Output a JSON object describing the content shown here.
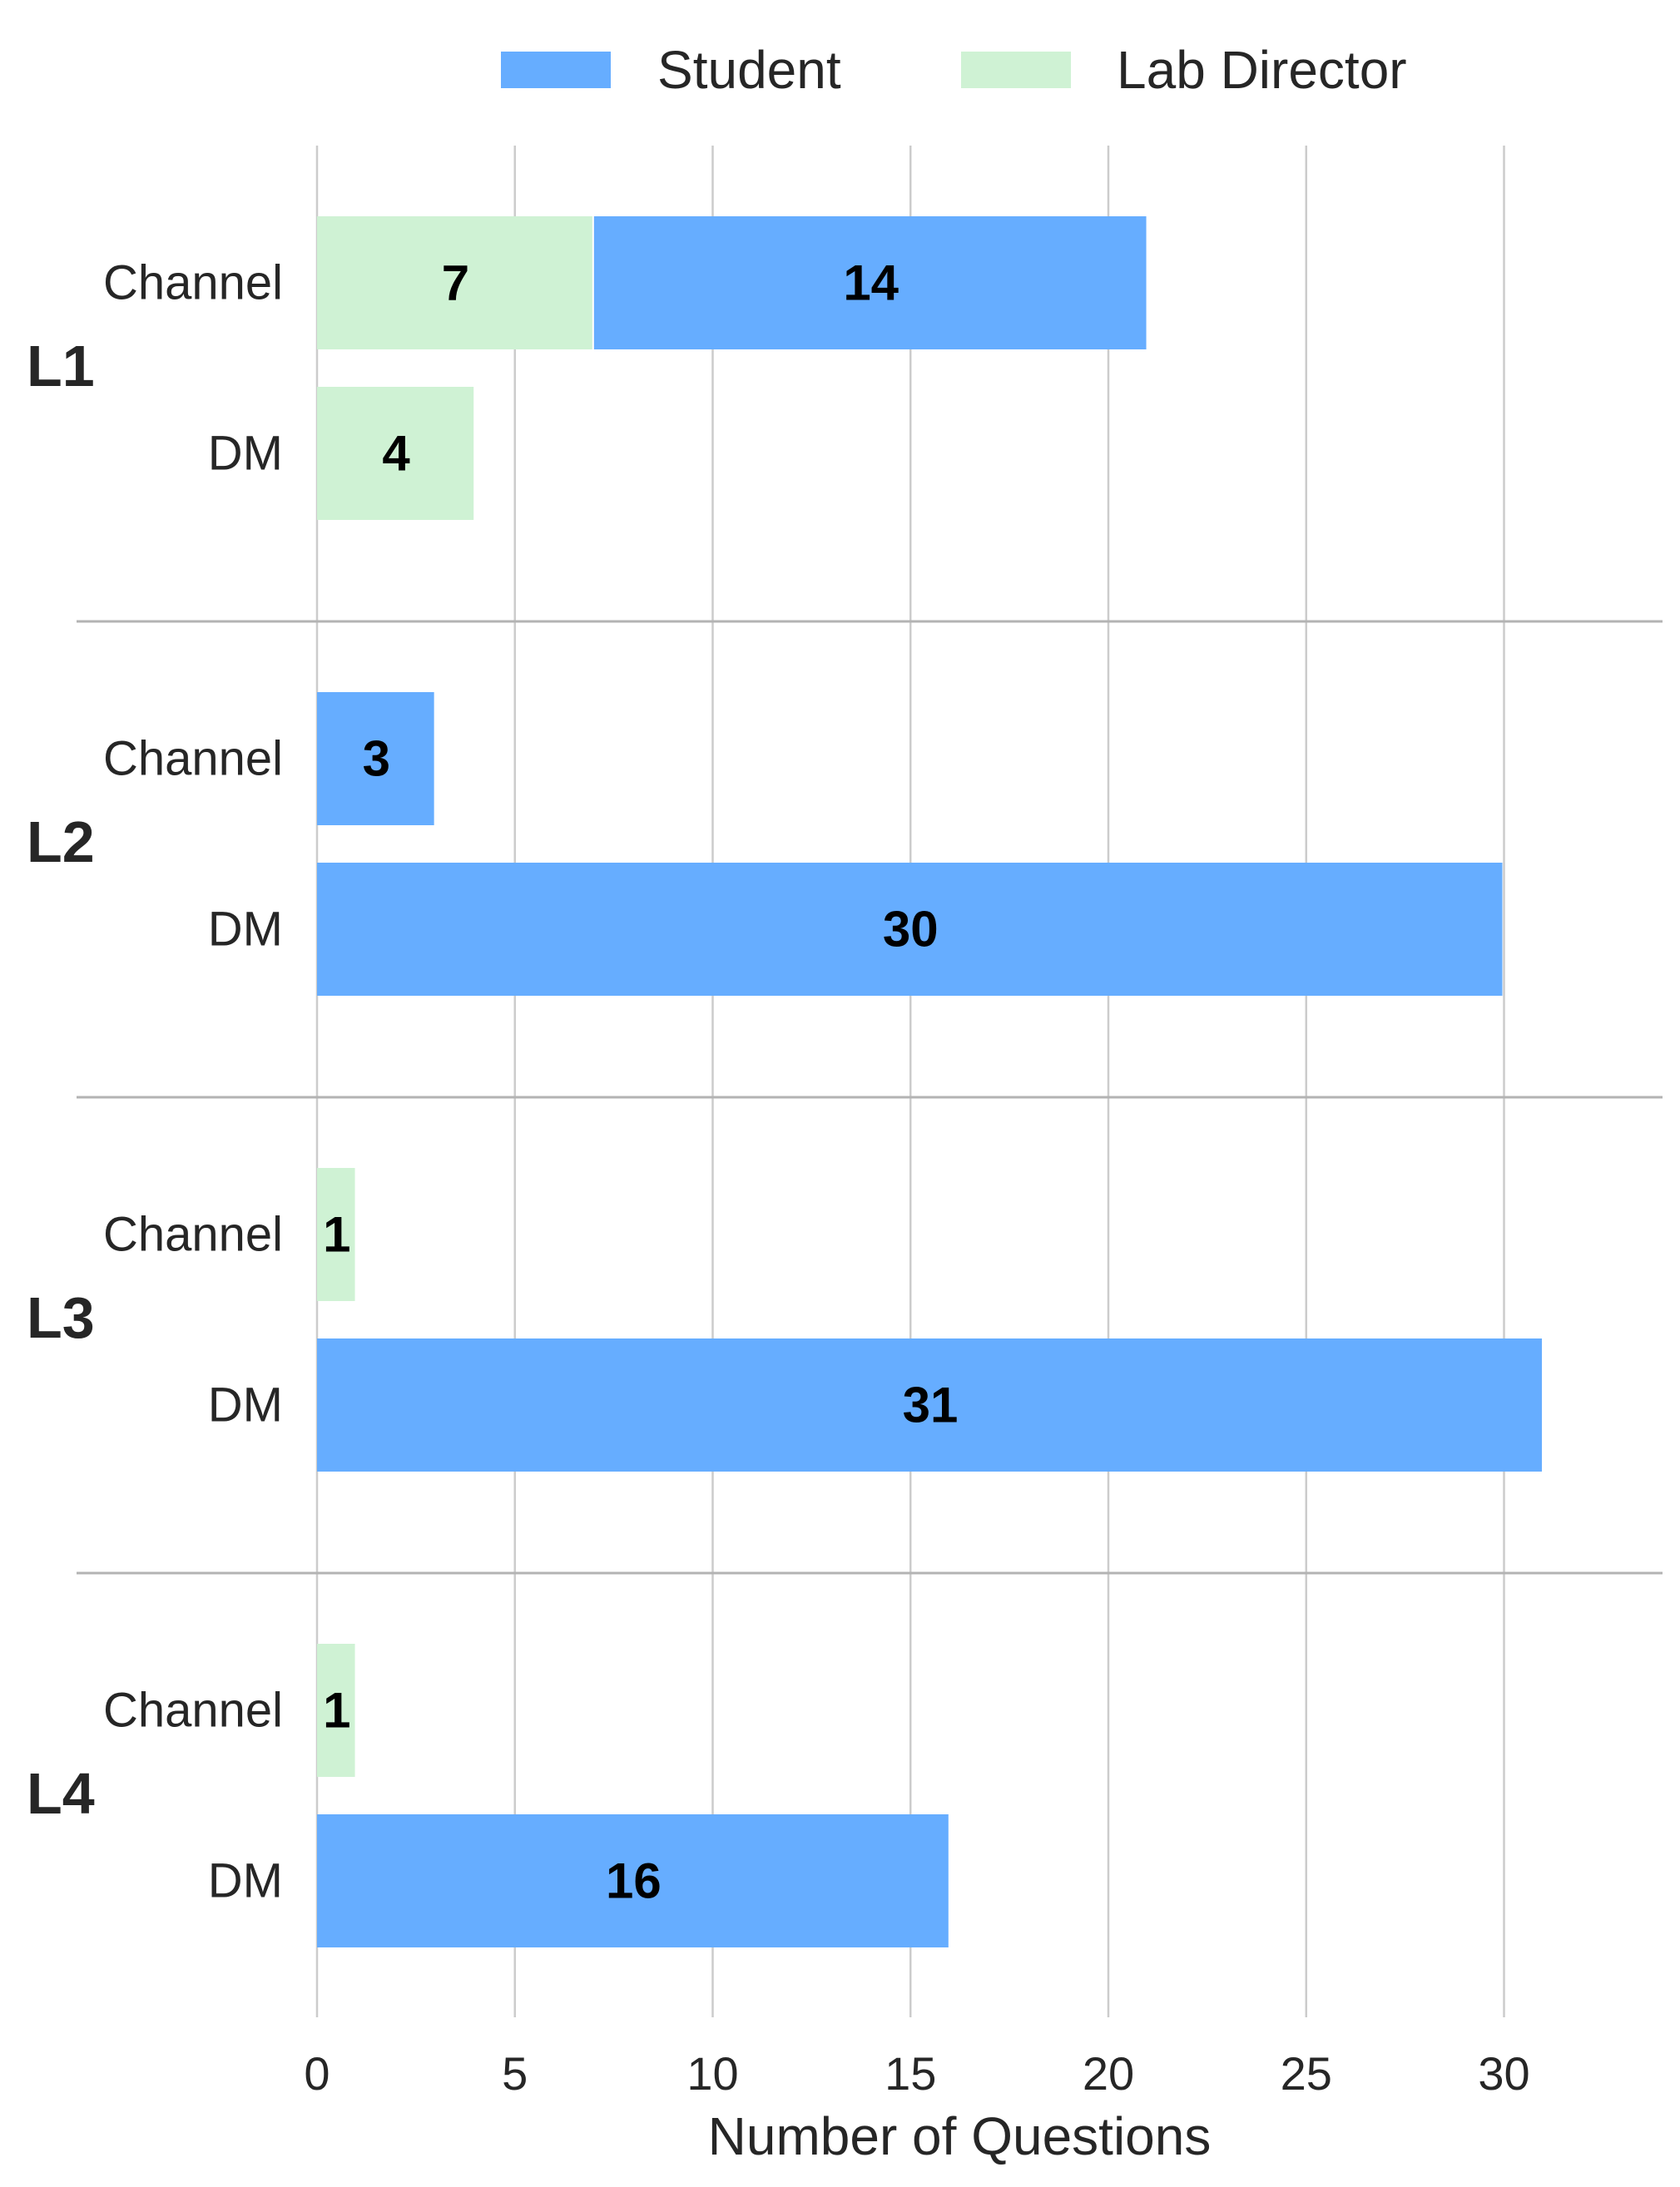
{
  "chart_data": {
    "type": "bar",
    "orientation": "horizontal",
    "stacked": true,
    "xlabel": "Number of Questions",
    "xlim": [
      0,
      34
    ],
    "xticks": [
      "0",
      "5",
      "10",
      "15",
      "20",
      "25",
      "30"
    ],
    "grid": "vertical",
    "legend_position": "top-center",
    "series": [
      {
        "name": "Student",
        "color": "#66adff"
      },
      {
        "name": "Lab Director",
        "color": "#cff2d4"
      }
    ],
    "groups": [
      {
        "label": "L1",
        "bars": [
          {
            "label": "Channel",
            "segments": [
              {
                "series": "Lab Director",
                "value": 7
              },
              {
                "series": "Student",
                "value": 14
              }
            ]
          },
          {
            "label": "DM",
            "segments": [
              {
                "series": "Lab Director",
                "value": 4
              }
            ]
          }
        ]
      },
      {
        "label": "L2",
        "bars": [
          {
            "label": "Channel",
            "segments": [
              {
                "series": "Student",
                "value": 3
              }
            ]
          },
          {
            "label": "DM",
            "segments": [
              {
                "series": "Student",
                "value": 30
              }
            ]
          }
        ]
      },
      {
        "label": "L3",
        "bars": [
          {
            "label": "Channel",
            "segments": [
              {
                "series": "Lab Director",
                "value": 1
              }
            ]
          },
          {
            "label": "DM",
            "segments": [
              {
                "series": "Student",
                "value": 31
              }
            ]
          }
        ]
      },
      {
        "label": "L4",
        "bars": [
          {
            "label": "Channel",
            "segments": [
              {
                "series": "Lab Director",
                "value": 1
              }
            ]
          },
          {
            "label": "DM",
            "segments": [
              {
                "series": "Student",
                "value": 16
              }
            ]
          }
        ]
      }
    ]
  }
}
